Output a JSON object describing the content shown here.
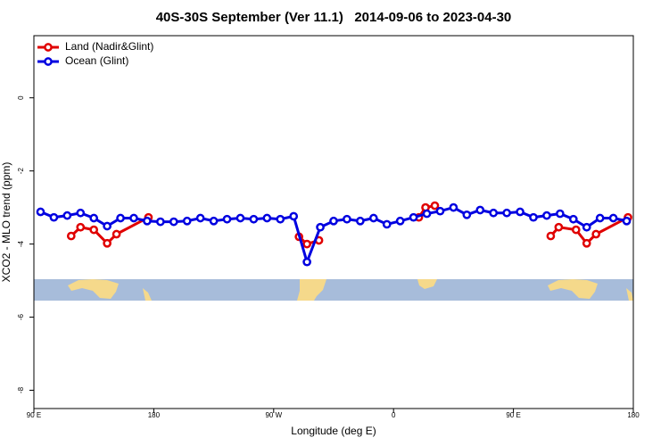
{
  "chart_data": {
    "type": "line",
    "title": "40S-30S September (Ver 11.1)   2014-09-06 to 2023-04-30",
    "x_label": "Longitude (deg E)",
    "y_label": "XCO2 - MLO trend (ppm)",
    "xlim": [
      90,
      540
    ],
    "xticks": [
      {
        "value": 90,
        "label": "90 E"
      },
      {
        "value": 180,
        "label": "180"
      },
      {
        "value": 270,
        "label": "90 W"
      },
      {
        "value": 360,
        "label": "0"
      },
      {
        "value": 450,
        "label": "90 E"
      },
      {
        "value": 540,
        "label": "180"
      }
    ],
    "ylim": [
      -8.5,
      1.7
    ],
    "yticks": [
      0,
      -2,
      -4,
      -6,
      -8
    ],
    "legend": "top-left",
    "series": [
      {
        "name": "Land (Nadir&Glint)",
        "color": "#e00000",
        "x": [
          118,
          125,
          135,
          145,
          152,
          176,
          230,
          289,
          295,
          304,
          340,
          379,
          384,
          391,
          430,
          478,
          484,
          497,
          505,
          512,
          536
        ],
        "values": [
          -3.78,
          -3.54,
          -3.61,
          -3.98,
          -3.73,
          -3.27,
          null,
          -3.8,
          -4.0,
          -3.9,
          null,
          -3.27,
          -3.0,
          -2.95,
          null,
          -3.78,
          -3.54,
          -3.61,
          -3.98,
          -3.73,
          -3.27
        ]
      },
      {
        "name": "Ocean (Glint)",
        "color": "#0000e0",
        "x": [
          95,
          105,
          115,
          125,
          135,
          145,
          155,
          165,
          175,
          185,
          195,
          205,
          215,
          225,
          235,
          245,
          255,
          265,
          275,
          285,
          295,
          305,
          315,
          325,
          335,
          345,
          355,
          365,
          375,
          385,
          395,
          405,
          415,
          425,
          435,
          445,
          455,
          465,
          475,
          485,
          495,
          505,
          515,
          525,
          535
        ],
        "values": [
          -3.12,
          -3.27,
          -3.22,
          -3.15,
          -3.29,
          -3.51,
          -3.29,
          -3.29,
          -3.37,
          -3.39,
          -3.39,
          -3.37,
          -3.29,
          -3.37,
          -3.32,
          -3.29,
          -3.32,
          -3.29,
          -3.32,
          -3.24,
          -4.49,
          -3.54,
          -3.37,
          -3.32,
          -3.37,
          -3.29,
          -3.46,
          -3.37,
          -3.27,
          -3.17,
          -3.1,
          -3.0,
          -3.2,
          -3.07,
          -3.15,
          -3.15,
          -3.12,
          -3.27,
          -3.22,
          -3.17,
          -3.32,
          -3.54,
          -3.29,
          -3.29,
          -3.37
        ]
      }
    ]
  }
}
